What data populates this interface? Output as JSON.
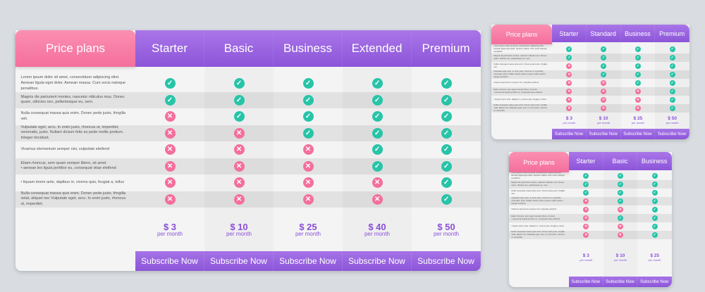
{
  "features": [
    "Lorem ipsum dolor sit amet, consectetuer adipiscing eliet. Aenean ligula eget dolor. Aenean massa. Cum socis natoque penatibus.",
    "Magnis dis parturient montes, nascetur ridiculus mus. Donec quam, ultricies nec, pellentesque eu, sem.",
    "Nulla consequat massa quis enim. Donec pede justo, fringilla veli.",
    "Vulputate eget, arcu. In enim justo, rhoncus ut, imperdiet, venenatis, justo. Nullam dictum felis eu pede mollis pretium. Integer tincidunt.",
    "Vivamus elementum semper nisi, vulputate eleifend",
    "Etiam rhoncus, sem quam semper libero, sit amet\n• aenean leo ligula porttitor eu, consequat vitae eleifend",
    "• liquam lorem ante, dapibus in, viverra quis, feugiat a, tellus",
    "Nulla consequat massa quis enim. Donec pede justo, fringilla velat, aliquet nec Vulputate eget, arcu. In enim justo, rhoncus ut, imperdiet."
  ],
  "colors": {
    "header": "#9563de",
    "title": "#f67ca5",
    "check": "#27c4a8",
    "cross": "#f46f9c",
    "price": "#8a4fd6"
  },
  "tables": [
    {
      "title": "Price plans",
      "period": "per month",
      "button": "Subscribe Now",
      "plans": [
        {
          "name": "Starter",
          "price": "$ 3",
          "features": [
            true,
            true,
            false,
            false,
            false,
            false,
            false,
            false
          ]
        },
        {
          "name": "Basic",
          "price": "$ 10",
          "features": [
            true,
            true,
            true,
            false,
            false,
            false,
            false,
            false
          ]
        },
        {
          "name": "Business",
          "price": "$ 25",
          "features": [
            true,
            true,
            true,
            true,
            false,
            false,
            false,
            false
          ]
        },
        {
          "name": "Extended",
          "price": "$ 40",
          "features": [
            true,
            true,
            true,
            true,
            true,
            true,
            false,
            false
          ]
        },
        {
          "name": "Premium",
          "price": "$ 50",
          "features": [
            true,
            true,
            true,
            true,
            true,
            true,
            true,
            true
          ]
        }
      ]
    },
    {
      "title": "Price plans",
      "period": "per month",
      "button": "Subscribe Now",
      "plans": [
        {
          "name": "Starter",
          "price": "$ 3",
          "features": [
            true,
            true,
            false,
            false,
            false,
            false,
            false,
            false
          ]
        },
        {
          "name": "Standard",
          "price": "$ 10",
          "features": [
            true,
            true,
            true,
            true,
            false,
            false,
            false,
            false
          ]
        },
        {
          "name": "Business",
          "price": "$ 25",
          "features": [
            true,
            true,
            true,
            true,
            true,
            false,
            false,
            false
          ]
        },
        {
          "name": "Premium",
          "price": "$ 50",
          "features": [
            true,
            true,
            true,
            true,
            true,
            true,
            true,
            true
          ]
        }
      ]
    },
    {
      "title": "Price plans",
      "period": "per month",
      "button": "Subscribe Now",
      "plans": [
        {
          "name": "Starter",
          "price": "$ 3",
          "features": [
            true,
            true,
            true,
            false,
            false,
            false,
            false,
            false
          ]
        },
        {
          "name": "Basic",
          "price": "$ 10",
          "features": [
            true,
            true,
            true,
            true,
            false,
            true,
            false,
            false
          ]
        },
        {
          "name": "Business",
          "price": "$ 25",
          "features": [
            true,
            true,
            true,
            true,
            true,
            true,
            true,
            true
          ]
        }
      ]
    }
  ]
}
